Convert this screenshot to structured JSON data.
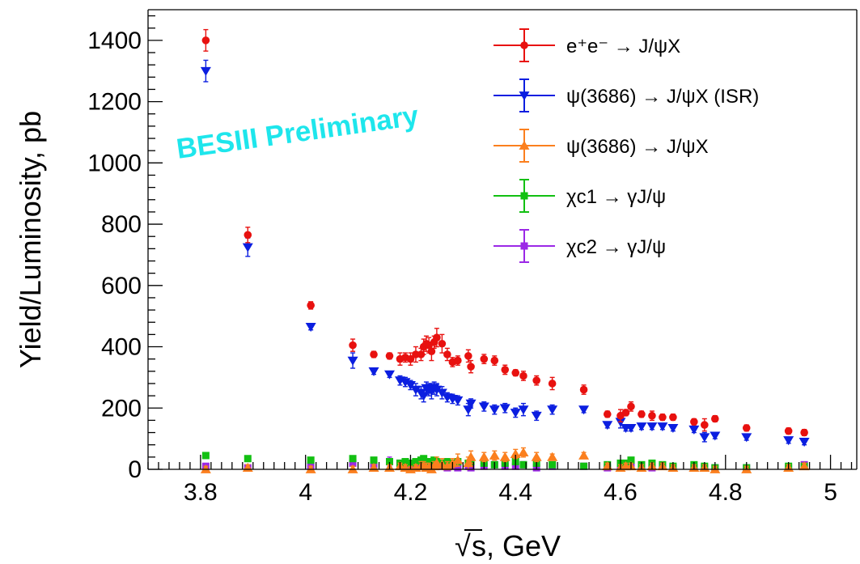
{
  "chart_data": {
    "type": "scatter",
    "xlabel": "s, GeV",
    "xlabel_radical": "√",
    "ylabel": "Yield/Luminosity, pb",
    "xlim": [
      3.7,
      5.05
    ],
    "ylim": [
      0,
      1500
    ],
    "x_ticks": [
      3.8,
      4.0,
      4.2,
      4.4,
      4.6,
      4.8,
      5.0
    ],
    "x_tick_labels": [
      "3.8",
      "4",
      "4.2",
      "4.4",
      "4.6",
      "4.8",
      "5"
    ],
    "y_ticks": [
      0,
      200,
      400,
      600,
      800,
      1000,
      1200,
      1400
    ],
    "y_tick_labels": [
      "0",
      "200",
      "400",
      "600",
      "800",
      "1000",
      "1200",
      "1400"
    ],
    "watermark": "BESIII Preliminary",
    "legend_position": "top-right",
    "series": [
      {
        "name": "e⁺e⁻ → J/ψX",
        "color": "#e8110f",
        "marker": "circle",
        "x": [
          3.81,
          3.89,
          4.01,
          4.09,
          4.13,
          4.16,
          4.18,
          4.19,
          4.2,
          4.21,
          4.22,
          4.225,
          4.23,
          4.235,
          4.24,
          4.245,
          4.25,
          4.26,
          4.27,
          4.28,
          4.29,
          4.31,
          4.315,
          4.34,
          4.36,
          4.38,
          4.4,
          4.415,
          4.44,
          4.47,
          4.53,
          4.575,
          4.6,
          4.61,
          4.62,
          4.64,
          4.66,
          4.68,
          4.7,
          4.74,
          4.76,
          4.78,
          4.84,
          4.92,
          4.95
        ],
        "y": [
          1400,
          765,
          535,
          405,
          375,
          370,
          360,
          365,
          360,
          375,
          375,
          400,
          410,
          405,
          385,
          415,
          430,
          410,
          375,
          350,
          355,
          370,
          335,
          360,
          355,
          325,
          315,
          305,
          290,
          280,
          260,
          180,
          175,
          185,
          205,
          180,
          175,
          170,
          170,
          155,
          145,
          165,
          135,
          125,
          120
        ],
        "err": [
          35,
          25,
          12,
          20,
          10,
          10,
          20,
          15,
          20,
          25,
          20,
          25,
          25,
          25,
          30,
          20,
          30,
          30,
          20,
          15,
          15,
          20,
          20,
          15,
          15,
          15,
          10,
          15,
          15,
          20,
          15,
          10,
          20,
          10,
          15,
          10,
          15,
          10,
          10,
          10,
          20,
          10,
          10,
          10,
          10
        ]
      },
      {
        "name": "ψ(3686) → J/ψX (ISR)",
        "color": "#0b1ee0",
        "marker": "triangle-down",
        "x": [
          3.81,
          3.89,
          4.01,
          4.09,
          4.13,
          4.16,
          4.18,
          4.19,
          4.2,
          4.21,
          4.22,
          4.225,
          4.23,
          4.235,
          4.24,
          4.245,
          4.25,
          4.26,
          4.27,
          4.28,
          4.29,
          4.31,
          4.315,
          4.34,
          4.36,
          4.38,
          4.4,
          4.415,
          4.44,
          4.47,
          4.53,
          4.575,
          4.6,
          4.61,
          4.62,
          4.64,
          4.66,
          4.68,
          4.7,
          4.74,
          4.76,
          4.78,
          4.84,
          4.92,
          4.95
        ],
        "y": [
          1300,
          725,
          465,
          355,
          320,
          310,
          290,
          285,
          275,
          260,
          250,
          240,
          265,
          260,
          255,
          265,
          260,
          250,
          235,
          230,
          225,
          195,
          215,
          205,
          195,
          200,
          185,
          195,
          175,
          195,
          195,
          145,
          155,
          135,
          135,
          140,
          140,
          140,
          135,
          130,
          105,
          110,
          105,
          95,
          90
        ],
        "err": [
          35,
          30,
          10,
          25,
          10,
          10,
          15,
          15,
          15,
          20,
          20,
          20,
          20,
          20,
          25,
          20,
          20,
          20,
          15,
          15,
          15,
          20,
          15,
          15,
          15,
          15,
          15,
          20,
          15,
          15,
          10,
          10,
          20,
          10,
          10,
          10,
          10,
          10,
          10,
          10,
          15,
          10,
          10,
          10,
          10
        ]
      },
      {
        "name": "ψ(3686) → J/ψX",
        "color": "#fb7f1e",
        "marker": "triangle-up",
        "x": [
          3.81,
          3.89,
          4.01,
          4.09,
          4.13,
          4.16,
          4.18,
          4.19,
          4.2,
          4.21,
          4.22,
          4.225,
          4.23,
          4.235,
          4.24,
          4.245,
          4.25,
          4.26,
          4.27,
          4.28,
          4.29,
          4.31,
          4.315,
          4.34,
          4.36,
          4.38,
          4.4,
          4.415,
          4.44,
          4.47,
          4.53,
          4.575,
          4.6,
          4.61,
          4.62,
          4.64,
          4.66,
          4.68,
          4.7,
          4.74,
          4.76,
          4.78,
          4.84,
          4.92,
          4.95
        ],
        "y": [
          0,
          5,
          0,
          0,
          5,
          5,
          10,
          5,
          0,
          5,
          10,
          10,
          5,
          5,
          0,
          10,
          20,
          15,
          10,
          20,
          30,
          20,
          40,
          40,
          45,
          40,
          50,
          55,
          40,
          40,
          45,
          10,
          5,
          10,
          10,
          5,
          10,
          10,
          5,
          5,
          5,
          0,
          0,
          5,
          10
        ],
        "err": [
          10,
          10,
          10,
          10,
          10,
          10,
          10,
          10,
          10,
          10,
          15,
          15,
          15,
          15,
          15,
          15,
          20,
          20,
          15,
          15,
          20,
          20,
          20,
          15,
          15,
          15,
          15,
          15,
          15,
          10,
          10,
          10,
          10,
          10,
          10,
          10,
          10,
          10,
          10,
          10,
          10,
          10,
          10,
          10,
          10
        ]
      },
      {
        "name": "χc1 → γJ/ψ",
        "color": "#12c012",
        "marker": "square",
        "x": [
          3.81,
          3.89,
          4.01,
          4.09,
          4.13,
          4.16,
          4.18,
          4.19,
          4.2,
          4.21,
          4.22,
          4.225,
          4.23,
          4.235,
          4.24,
          4.245,
          4.25,
          4.26,
          4.27,
          4.28,
          4.29,
          4.31,
          4.315,
          4.34,
          4.36,
          4.38,
          4.4,
          4.415,
          4.44,
          4.47,
          4.53,
          4.575,
          4.6,
          4.61,
          4.62,
          4.64,
          4.66,
          4.68,
          4.7,
          4.74,
          4.76,
          4.78,
          4.84,
          4.92,
          4.95
        ],
        "y": [
          45,
          35,
          30,
          35,
          30,
          25,
          20,
          25,
          20,
          25,
          30,
          35,
          25,
          25,
          20,
          30,
          25,
          20,
          25,
          20,
          25,
          20,
          25,
          20,
          15,
          20,
          25,
          15,
          20,
          15,
          10,
          15,
          20,
          20,
          30,
          15,
          20,
          15,
          10,
          15,
          10,
          5,
          5,
          10,
          10
        ],
        "err": [
          8,
          8,
          8,
          8,
          8,
          8,
          8,
          8,
          8,
          8,
          8,
          8,
          8,
          8,
          8,
          8,
          8,
          8,
          8,
          8,
          8,
          8,
          8,
          8,
          8,
          8,
          8,
          8,
          8,
          8,
          8,
          8,
          8,
          8,
          8,
          8,
          8,
          8,
          8,
          8,
          8,
          8,
          8,
          8,
          8
        ]
      },
      {
        "name": "χc2 → γJ/ψ",
        "color": "#9b28e6",
        "marker": "square",
        "x": [
          3.81,
          3.89,
          4.01,
          4.09,
          4.13,
          4.16,
          4.18,
          4.19,
          4.2,
          4.21,
          4.22,
          4.225,
          4.23,
          4.235,
          4.24,
          4.245,
          4.25,
          4.26,
          4.27,
          4.28,
          4.29,
          4.31,
          4.315,
          4.34,
          4.36,
          4.38,
          4.4,
          4.415,
          4.44,
          4.47,
          4.53,
          4.575,
          4.6,
          4.61,
          4.62,
          4.64,
          4.66,
          4.68,
          4.7,
          4.74,
          4.76,
          4.78,
          4.84,
          4.92,
          4.95
        ],
        "y": [
          10,
          5,
          10,
          20,
          15,
          25,
          20,
          15,
          15,
          15,
          10,
          10,
          15,
          20,
          10,
          15,
          10,
          10,
          5,
          10,
          5,
          10,
          5,
          10,
          15,
          10,
          10,
          15,
          5,
          10,
          10,
          5,
          10,
          10,
          15,
          10,
          5,
          10,
          5,
          5,
          5,
          5,
          5,
          5,
          15
        ],
        "err": [
          8,
          8,
          8,
          8,
          8,
          15,
          8,
          8,
          8,
          8,
          8,
          8,
          8,
          8,
          8,
          8,
          8,
          8,
          8,
          8,
          8,
          8,
          8,
          8,
          8,
          8,
          8,
          8,
          8,
          8,
          8,
          8,
          8,
          8,
          8,
          8,
          8,
          8,
          8,
          8,
          8,
          8,
          8,
          8,
          8
        ]
      }
    ]
  }
}
